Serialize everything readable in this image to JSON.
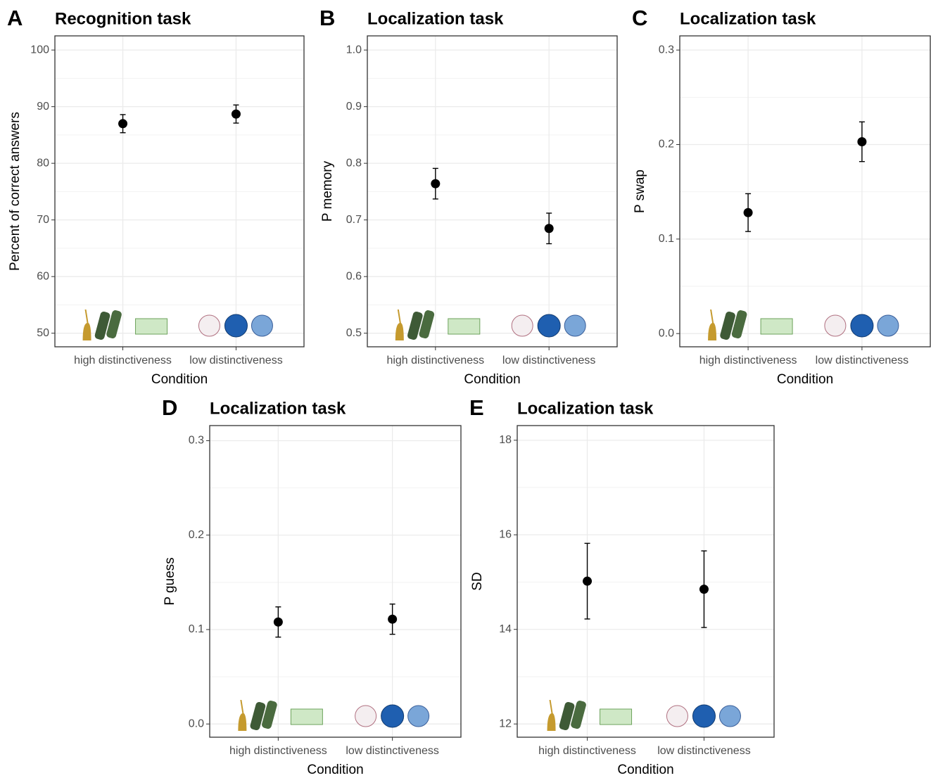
{
  "chart_data": [
    {
      "type": "pointrange",
      "panel": "A",
      "title": "Recognition task",
      "x_label": "Condition",
      "y_label": "Percent of correct answers",
      "categories": [
        "high distinctiveness",
        "low distinctiveness"
      ],
      "values": [
        87.0,
        88.7
      ],
      "errors": [
        1.6,
        1.6
      ],
      "color": "#000000",
      "ylim": [
        47.6,
        102.5
      ],
      "yticks": [
        50,
        60,
        70,
        80,
        90,
        100
      ],
      "grid": true
    },
    {
      "type": "pointrange",
      "panel": "B",
      "title": "Localization task",
      "x_label": "Condition",
      "y_label": "P memory",
      "categories": [
        "high distinctiveness",
        "low distinctiveness"
      ],
      "values": [
        0.764,
        0.685
      ],
      "errors": [
        0.027,
        0.027
      ],
      "color": "#000000",
      "ylim": [
        0.476,
        1.025
      ],
      "yticks": [
        {
          "value": 0.5,
          "label": "0.5"
        },
        {
          "value": 0.6,
          "label": "0.6"
        },
        {
          "value": 0.7,
          "label": "0.7"
        },
        {
          "value": 0.8,
          "label": "0.8"
        },
        {
          "value": 0.9,
          "label": "0.9"
        },
        {
          "value": 1.0,
          "label": "1.0"
        }
      ],
      "grid": true
    },
    {
      "type": "pointrange",
      "panel": "C",
      "title": "Localization task",
      "x_label": "Condition",
      "y_label": "P swap",
      "categories": [
        "high distinctiveness",
        "low distinctiveness"
      ],
      "values": [
        0.128,
        0.203
      ],
      "errors": [
        0.02,
        0.021
      ],
      "color": "#000000",
      "ylim": [
        -0.014,
        0.315
      ],
      "yticks": [
        {
          "value": 0,
          "label": "0.0"
        },
        0.1,
        0.2,
        0.3
      ],
      "grid": true
    },
    {
      "type": "pointrange",
      "panel": "D",
      "title": "Localization task",
      "x_label": "Condition",
      "y_label": "P guess",
      "categories": [
        "high distinctiveness",
        "low distinctiveness"
      ],
      "values": [
        0.108,
        0.111
      ],
      "errors": [
        0.016,
        0.016
      ],
      "color": "#000000",
      "ylim": [
        -0.014,
        0.316
      ],
      "yticks": [
        {
          "value": 0,
          "label": "0.0"
        },
        0.1,
        0.2,
        0.3
      ],
      "grid": true
    },
    {
      "type": "pointrange",
      "panel": "E",
      "title": "Localization task",
      "x_label": "Condition",
      "y_label": "SD",
      "categories": [
        "high distinctiveness",
        "low distinctiveness"
      ],
      "values": [
        15.02,
        14.85
      ],
      "errors": [
        0.8,
        0.81
      ],
      "color": "#000000",
      "ylim": [
        11.72,
        18.31
      ],
      "yticks": [
        12,
        14,
        16,
        18
      ],
      "grid": true
    }
  ]
}
